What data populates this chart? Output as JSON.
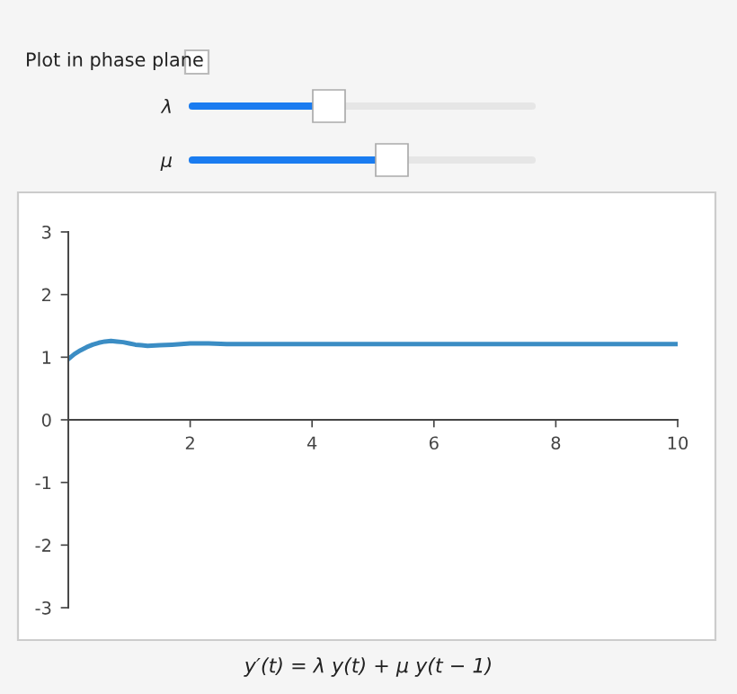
{
  "chart_data": {
    "type": "line",
    "x": [
      0,
      0.1,
      0.2,
      0.3,
      0.4,
      0.5,
      0.6,
      0.7,
      0.8,
      0.9,
      1.0,
      1.1,
      1.2,
      1.3,
      1.5,
      1.7,
      2.0,
      2.3,
      2.6,
      3.0,
      4,
      5,
      6,
      7,
      8,
      9,
      10
    ],
    "series": [
      {
        "color": "#3b8dc4",
        "values": [
          0.97,
          1.05,
          1.11,
          1.16,
          1.2,
          1.23,
          1.25,
          1.26,
          1.25,
          1.24,
          1.22,
          1.2,
          1.19,
          1.18,
          1.19,
          1.2,
          1.22,
          1.22,
          1.21,
          1.21,
          1.21,
          1.21,
          1.21,
          1.21,
          1.21,
          1.21,
          1.21
        ]
      }
    ],
    "xlim": [
      0,
      10
    ],
    "ylim": [
      -3,
      3
    ],
    "xticks": [
      2,
      4,
      6,
      8,
      10
    ],
    "yticks": [
      -3,
      -2,
      -1,
      0,
      1,
      2,
      3
    ],
    "grid": false,
    "marker": "none",
    "line_style": "solid",
    "annotations": [
      "Plot in phase plane",
      "λ",
      "μ",
      "y′(t) = λ y(t) + μ y(t − 1)"
    ]
  }
}
